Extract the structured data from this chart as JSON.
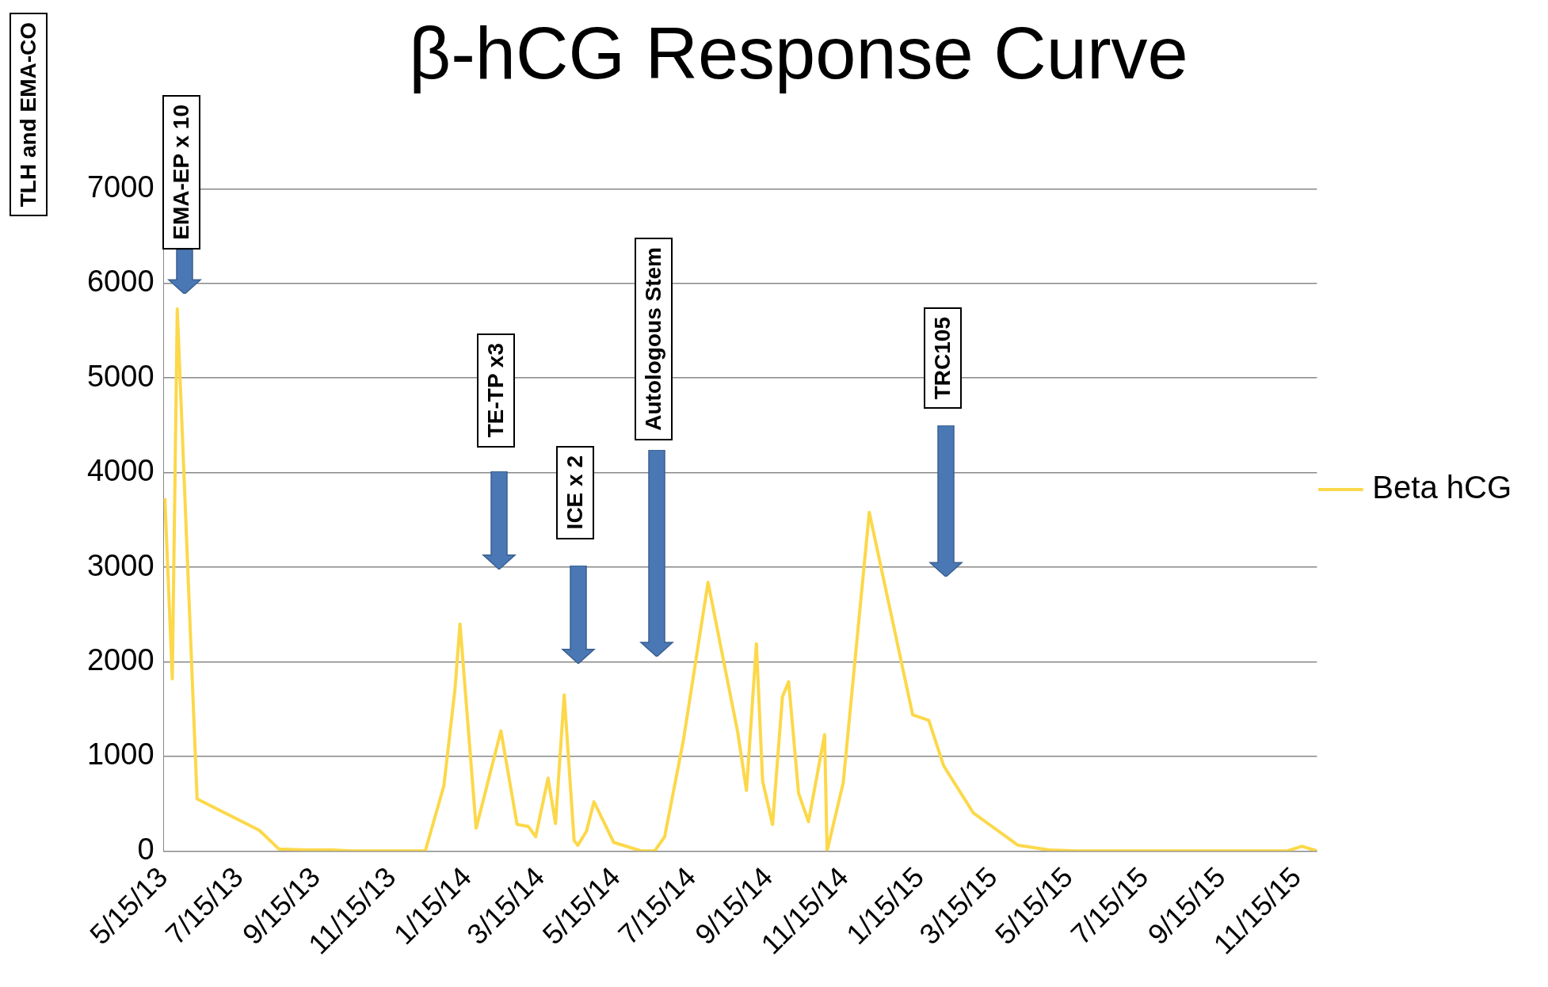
{
  "chart_data": {
    "type": "line",
    "title": "β-hCG Response Curve",
    "x": [
      "2013-05-16",
      "2013-05-22",
      "2013-05-26",
      "2013-06-11",
      "2013-07-31",
      "2013-08-16",
      "2013-09-06",
      "2013-09-28",
      "2013-10-13",
      "2013-12-12",
      "2013-12-27",
      "2014-01-05",
      "2014-01-09",
      "2014-01-22",
      "2014-02-11",
      "2014-02-24",
      "2014-03-05",
      "2014-03-11",
      "2014-03-21",
      "2014-03-27",
      "2014-04-03",
      "2014-04-11",
      "2014-04-14",
      "2014-04-21",
      "2014-04-27",
      "2014-05-13",
      "2014-06-04",
      "2014-06-15",
      "2014-06-23",
      "2014-07-08",
      "2014-07-28",
      "2014-08-21",
      "2014-08-28",
      "2014-09-05",
      "2014-09-10",
      "2014-09-18",
      "2014-09-26",
      "2014-10-01",
      "2014-10-09",
      "2014-10-17",
      "2014-10-30",
      "2014-11-01",
      "2014-11-14",
      "2014-12-05",
      "2015-01-09",
      "2015-01-22",
      "2015-02-03",
      "2015-02-27",
      "2015-04-04",
      "2015-04-29",
      "2015-05-21",
      "2015-11-07",
      "2015-11-19",
      "2015-12-01"
    ],
    "series": [
      {
        "name": "Beta hCG",
        "color": "#fcd84a",
        "values": [
          3730,
          1820,
          5730,
          550,
          220,
          20,
          10,
          10,
          0,
          0,
          690,
          1720,
          2400,
          240,
          1270,
          280,
          260,
          150,
          770,
          290,
          1650,
          110,
          60,
          210,
          520,
          90,
          0,
          0,
          150,
          1160,
          2840,
          1250,
          640,
          2190,
          740,
          280,
          1630,
          1790,
          610,
          310,
          1230,
          0,
          720,
          3580,
          1440,
          1380,
          900,
          400,
          60,
          10,
          0,
          0,
          50,
          0
        ]
      }
    ],
    "xlim": [
      "2013-05-15",
      "2015-12-01"
    ],
    "xticks": [
      {
        "value": "2013-05-15",
        "label": "5/15/13"
      },
      {
        "value": "2013-07-15",
        "label": "7/15/13"
      },
      {
        "value": "2013-09-15",
        "label": "9/15/13"
      },
      {
        "value": "2013-11-15",
        "label": "11/15/13"
      },
      {
        "value": "2014-01-15",
        "label": "1/15/14"
      },
      {
        "value": "2014-03-15",
        "label": "3/15/14"
      },
      {
        "value": "2014-05-15",
        "label": "5/15/14"
      },
      {
        "value": "2014-07-15",
        "label": "7/15/14"
      },
      {
        "value": "2014-09-15",
        "label": "9/15/14"
      },
      {
        "value": "2014-11-15",
        "label": "11/15/14"
      },
      {
        "value": "2015-01-15",
        "label": "1/15/15"
      },
      {
        "value": "2015-03-15",
        "label": "3/15/15"
      },
      {
        "value": "2015-05-15",
        "label": "5/15/15"
      },
      {
        "value": "2015-07-15",
        "label": "7/15/15"
      },
      {
        "value": "2015-09-15",
        "label": "9/15/15"
      },
      {
        "value": "2015-11-15",
        "label": "11/15/15"
      }
    ],
    "ylim": [
      0,
      7000
    ],
    "yticks": [
      0,
      1000,
      2000,
      3000,
      4000,
      5000,
      6000,
      7000
    ],
    "grid": "y",
    "legend": "right",
    "marker": "none",
    "annotations": [
      "TLH and EMA-CO",
      "EMA-EP x 10",
      "TE-TP x3",
      "ICE x 2",
      "Autologous Stem",
      "TRC105"
    ]
  }
}
